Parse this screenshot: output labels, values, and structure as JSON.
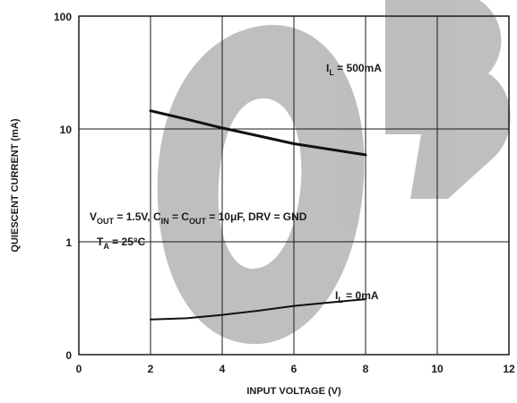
{
  "chart_data": {
    "type": "line",
    "title": "",
    "xlabel": "INPUT VOLTAGE (V)",
    "ylabel": "QUIESCENT CURRENT (mA)",
    "xlim": [
      0,
      12
    ],
    "ylim_decades": [
      0,
      1,
      10,
      100
    ],
    "y_scale": "log",
    "grid": true,
    "x_ticks": [
      "0",
      "2",
      "4",
      "6",
      "8",
      "10",
      "12"
    ],
    "y_ticks": [
      "0",
      "1",
      "10",
      "100"
    ],
    "series": [
      {
        "name": "IL = 500mA",
        "x": [
          2,
          3,
          4,
          5,
          6,
          7,
          8
        ],
        "y": [
          14.5,
          12.2,
          10.2,
          8.7,
          7.4,
          6.6,
          5.9
        ]
      },
      {
        "name": "IL = 0mA",
        "x": [
          2,
          3,
          4,
          5,
          6,
          7,
          8
        ],
        "y": [
          0.205,
          0.21,
          0.225,
          0.245,
          0.27,
          0.29,
          0.31
        ]
      }
    ],
    "annotations": {
      "load_500": {
        "main": "I",
        "sub": "L",
        "rest": " = 500mA"
      },
      "load_0": {
        "main": "I",
        "sub": "L",
        "rest": " = 0mA"
      },
      "conditions": {
        "p1": "V",
        "s1": "OUT",
        "p2": " = 1.5V, C",
        "s2": "IN",
        "p3": " = C",
        "s3": "OUT",
        "p4": " = 10μF, DRV = GND"
      },
      "temperature": {
        "p1": "T",
        "s1": "A",
        "p2": " = 25°C"
      }
    },
    "watermark_text": "OBSOLETE"
  }
}
